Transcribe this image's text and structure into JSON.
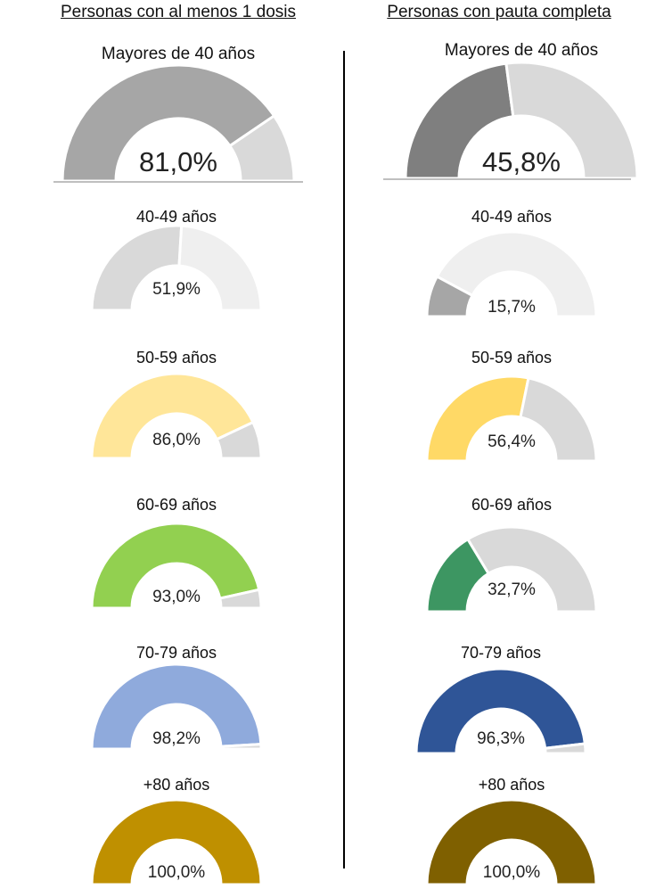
{
  "headers": {
    "left": "Personas con al menos 1 dosis",
    "right": "Personas con pauta completa"
  },
  "chart_data": [
    {
      "type": "gauge",
      "title": "Mayores de 40 años",
      "column": "Personas con al menos 1 dosis",
      "value": 81.0,
      "label": "81,0%",
      "color": "#a6a6a6",
      "rest_color": "#d9d9d9"
    },
    {
      "type": "gauge",
      "title": "Mayores de 40 años",
      "column": "Personas con pauta completa",
      "value": 45.8,
      "label": "45,8%",
      "color": "#7f7f7f",
      "rest_color": "#d9d9d9"
    },
    {
      "type": "gauge",
      "title": "40-49 años",
      "column": "Personas con al menos 1 dosis",
      "value": 51.9,
      "label": "51,9%",
      "color": "#d9d9d9",
      "rest_color": "#efefef"
    },
    {
      "type": "gauge",
      "title": "40-49 años",
      "column": "Personas con pauta completa",
      "value": 15.7,
      "label": "15,7%",
      "color": "#a6a6a6",
      "rest_color": "#efefef"
    },
    {
      "type": "gauge",
      "title": "50-59 años",
      "column": "Personas con al menos 1 dosis",
      "value": 86.0,
      "label": "86,0%",
      "color": "#ffe699",
      "rest_color": "#d9d9d9"
    },
    {
      "type": "gauge",
      "title": "50-59 años",
      "column": "Personas con pauta completa",
      "value": 56.4,
      "label": "56,4%",
      "color": "#ffd966",
      "rest_color": "#d9d9d9"
    },
    {
      "type": "gauge",
      "title": "60-69 años",
      "column": "Personas con al menos 1 dosis",
      "value": 93.0,
      "label": "93,0%",
      "color": "#92d050",
      "rest_color": "#d9d9d9"
    },
    {
      "type": "gauge",
      "title": "60-69 años",
      "column": "Personas con pauta completa",
      "value": 32.7,
      "label": "32,7%",
      "color": "#3d9662",
      "rest_color": "#d9d9d9"
    },
    {
      "type": "gauge",
      "title": "70-79 años",
      "column": "Personas con al menos 1 dosis",
      "value": 98.2,
      "label": "98,2%",
      "color": "#8faadc",
      "rest_color": "#d9d9d9"
    },
    {
      "type": "gauge",
      "title": "70-79 años",
      "column": "Personas con pauta completa",
      "value": 96.3,
      "label": "96,3%",
      "color": "#2f5597",
      "rest_color": "#d9d9d9"
    },
    {
      "type": "gauge",
      "title": "+80 años",
      "column": "Personas con al menos 1 dosis",
      "value": 100.0,
      "label": "100,0%",
      "color": "#bf9000",
      "rest_color": "#d9d9d9"
    },
    {
      "type": "gauge",
      "title": "+80 años",
      "column": "Personas con pauta completa",
      "value": 100.0,
      "label": "100,0%",
      "color": "#7f6000",
      "rest_color": "#d9d9d9"
    }
  ]
}
